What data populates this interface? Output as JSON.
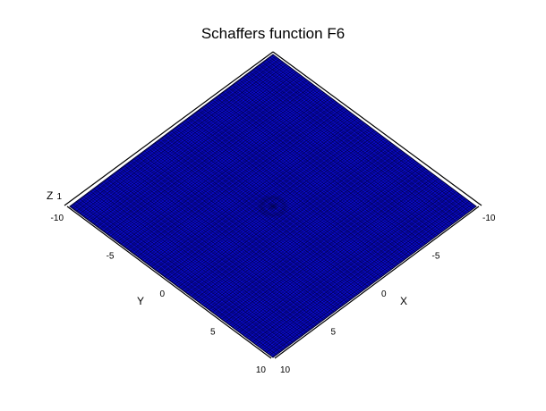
{
  "chart_data": {
    "type": "surface",
    "title": "Schaffers function F6",
    "xlabel": "X",
    "ylabel": "Y",
    "zlabel": "Z",
    "x_range": [
      -10,
      10
    ],
    "y_range": [
      -10,
      10
    ],
    "z_range": [
      0,
      1
    ],
    "x_ticks": [
      "-10",
      "-5",
      "0",
      "5",
      "10"
    ],
    "y_ticks": [
      "-10",
      "-5",
      "0",
      "5",
      "10"
    ],
    "z_ticks": [
      "1"
    ],
    "view": "top-down isometric",
    "surface_color": "#0000cc",
    "mesh_color": "#000033",
    "grid": false
  }
}
